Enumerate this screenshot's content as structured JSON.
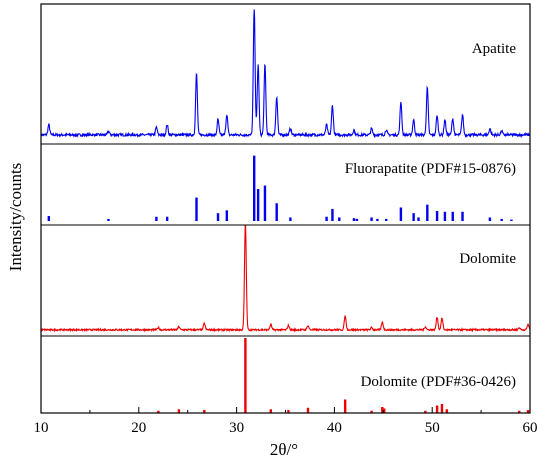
{
  "chart_data": {
    "type": "line",
    "xlabel": "2θ/°",
    "ylabel": "Intensity/counts",
    "xlim": [
      10,
      60
    ],
    "x_ticks": [
      10,
      20,
      30,
      40,
      50,
      60
    ],
    "grid": false,
    "colors": {
      "apatite": "#0000ee",
      "dolomite": "#ee0000",
      "axis": "#000000"
    },
    "panels": [
      {
        "label": "Apatite",
        "style": "pattern",
        "color": "#0000ee",
        "baseline": 0.04,
        "peaks": [
          {
            "x": 10.8,
            "y": 0.08
          },
          {
            "x": 16.9,
            "y": 0.03
          },
          {
            "x": 21.8,
            "y": 0.06
          },
          {
            "x": 22.9,
            "y": 0.08
          },
          {
            "x": 25.9,
            "y": 0.48
          },
          {
            "x": 28.1,
            "y": 0.12
          },
          {
            "x": 29.0,
            "y": 0.16
          },
          {
            "x": 31.8,
            "y": 1.0
          },
          {
            "x": 32.2,
            "y": 0.55
          },
          {
            "x": 32.9,
            "y": 0.55
          },
          {
            "x": 34.1,
            "y": 0.3
          },
          {
            "x": 35.5,
            "y": 0.05
          },
          {
            "x": 39.2,
            "y": 0.08
          },
          {
            "x": 39.8,
            "y": 0.23
          },
          {
            "x": 42.0,
            "y": 0.04
          },
          {
            "x": 43.8,
            "y": 0.05
          },
          {
            "x": 45.3,
            "y": 0.04
          },
          {
            "x": 46.8,
            "y": 0.26
          },
          {
            "x": 48.1,
            "y": 0.12
          },
          {
            "x": 49.5,
            "y": 0.37
          },
          {
            "x": 50.5,
            "y": 0.15
          },
          {
            "x": 51.3,
            "y": 0.12
          },
          {
            "x": 52.1,
            "y": 0.13
          },
          {
            "x": 53.1,
            "y": 0.16
          },
          {
            "x": 55.9,
            "y": 0.05
          },
          {
            "x": 57.1,
            "y": 0.03
          }
        ]
      },
      {
        "label": "Fluorapatite (PDF#15-0876)",
        "style": "sticks",
        "color": "#0000ee",
        "peaks": [
          {
            "x": 10.8,
            "y": 0.07
          },
          {
            "x": 16.9,
            "y": 0.03
          },
          {
            "x": 21.8,
            "y": 0.06
          },
          {
            "x": 22.9,
            "y": 0.06
          },
          {
            "x": 25.9,
            "y": 0.33
          },
          {
            "x": 28.1,
            "y": 0.11
          },
          {
            "x": 29.0,
            "y": 0.15
          },
          {
            "x": 31.8,
            "y": 0.92
          },
          {
            "x": 32.2,
            "y": 0.45
          },
          {
            "x": 32.9,
            "y": 0.5
          },
          {
            "x": 34.1,
            "y": 0.25
          },
          {
            "x": 35.5,
            "y": 0.05
          },
          {
            "x": 39.2,
            "y": 0.06
          },
          {
            "x": 39.8,
            "y": 0.17
          },
          {
            "x": 40.5,
            "y": 0.05
          },
          {
            "x": 42.0,
            "y": 0.04
          },
          {
            "x": 42.3,
            "y": 0.03
          },
          {
            "x": 43.8,
            "y": 0.05
          },
          {
            "x": 44.4,
            "y": 0.03
          },
          {
            "x": 45.3,
            "y": 0.03
          },
          {
            "x": 46.8,
            "y": 0.19
          },
          {
            "x": 48.1,
            "y": 0.11
          },
          {
            "x": 48.6,
            "y": 0.05
          },
          {
            "x": 49.5,
            "y": 0.23
          },
          {
            "x": 50.5,
            "y": 0.14
          },
          {
            "x": 51.3,
            "y": 0.13
          },
          {
            "x": 52.1,
            "y": 0.13
          },
          {
            "x": 53.1,
            "y": 0.13
          },
          {
            "x": 55.9,
            "y": 0.05
          },
          {
            "x": 57.1,
            "y": 0.03
          },
          {
            "x": 58.1,
            "y": 0.02
          }
        ]
      },
      {
        "label": "Dolomite",
        "style": "pattern",
        "color": "#ee0000",
        "baseline": 0.03,
        "peaks": [
          {
            "x": 22.0,
            "y": 0.02
          },
          {
            "x": 24.1,
            "y": 0.03
          },
          {
            "x": 26.7,
            "y": 0.06
          },
          {
            "x": 30.9,
            "y": 1.0
          },
          {
            "x": 33.5,
            "y": 0.05
          },
          {
            "x": 35.3,
            "y": 0.04
          },
          {
            "x": 37.3,
            "y": 0.04
          },
          {
            "x": 41.1,
            "y": 0.13
          },
          {
            "x": 43.8,
            "y": 0.02
          },
          {
            "x": 44.9,
            "y": 0.07
          },
          {
            "x": 49.3,
            "y": 0.03
          },
          {
            "x": 50.5,
            "y": 0.12
          },
          {
            "x": 51.0,
            "y": 0.11
          },
          {
            "x": 58.9,
            "y": 0.02
          },
          {
            "x": 59.8,
            "y": 0.05
          }
        ]
      },
      {
        "label": "Dolomite (PDF#36-0426)",
        "style": "sticks",
        "color": "#ee0000",
        "peaks": [
          {
            "x": 22.0,
            "y": 0.03
          },
          {
            "x": 24.1,
            "y": 0.05
          },
          {
            "x": 26.7,
            "y": 0.04
          },
          {
            "x": 30.9,
            "y": 1.0
          },
          {
            "x": 33.5,
            "y": 0.05
          },
          {
            "x": 35.3,
            "y": 0.04
          },
          {
            "x": 37.3,
            "y": 0.07
          },
          {
            "x": 41.1,
            "y": 0.18
          },
          {
            "x": 43.8,
            "y": 0.03
          },
          {
            "x": 44.9,
            "y": 0.08
          },
          {
            "x": 45.1,
            "y": 0.06
          },
          {
            "x": 49.3,
            "y": 0.03
          },
          {
            "x": 50.5,
            "y": 0.1
          },
          {
            "x": 51.0,
            "y": 0.12
          },
          {
            "x": 51.5,
            "y": 0.05
          },
          {
            "x": 58.9,
            "y": 0.03
          },
          {
            "x": 59.8,
            "y": 0.04
          }
        ]
      }
    ]
  }
}
